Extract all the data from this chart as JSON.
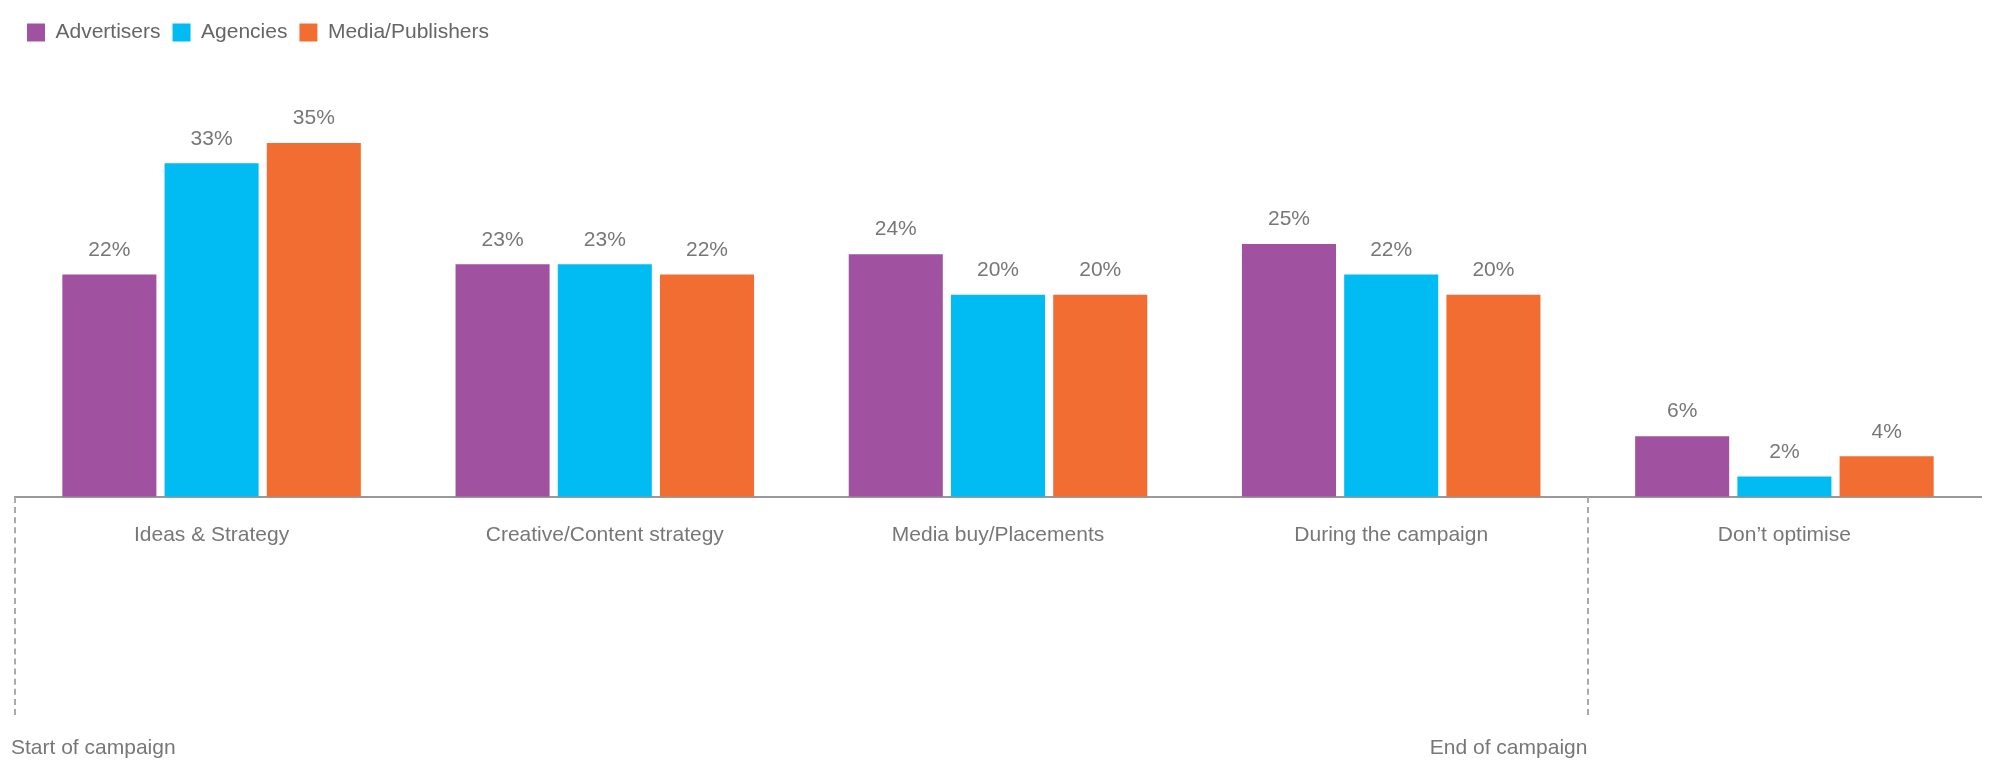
{
  "chart_data": {
    "type": "bar",
    "categories": [
      "Ideas & Strategy",
      "Creative/Content strategy",
      "Media buy/Placements",
      "During the campaign",
      "Don’t optimise"
    ],
    "series": [
      {
        "name": "Advertisers",
        "color": "#a052a0",
        "values": [
          22,
          23,
          24,
          25,
          6
        ],
        "value_labels": [
          "22%",
          "23%",
          "24%",
          "25%",
          "6%"
        ]
      },
      {
        "name": "Agencies",
        "color": "#00bcf2",
        "values": [
          33,
          23,
          20,
          22,
          2
        ],
        "value_labels": [
          "33%",
          "23%",
          "20%",
          "22%",
          "2%"
        ]
      },
      {
        "name": "Media/Publishers",
        "color": "#f26d32",
        "values": [
          35,
          22,
          20,
          20,
          4
        ],
        "value_labels": [
          "35%",
          "22%",
          "20%",
          "20%",
          "4%"
        ]
      }
    ],
    "legend": "top left",
    "tick_labels": "x",
    "annotations": [
      "Start of campaign",
      "End of campaign"
    ]
  }
}
